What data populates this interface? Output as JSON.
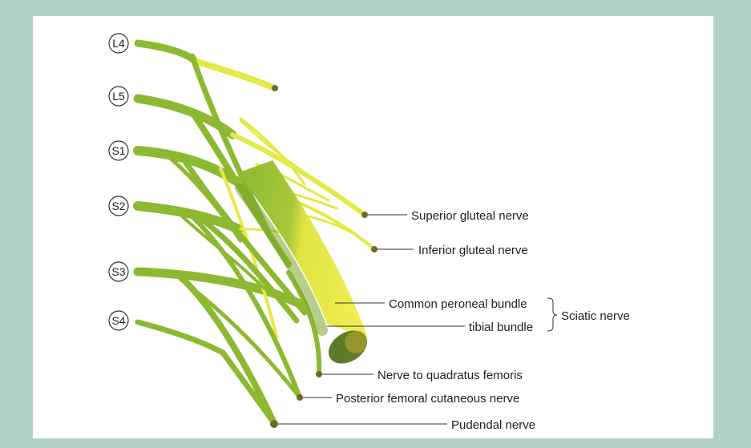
{
  "roots": [
    "L4",
    "L5",
    "S1",
    "S2",
    "S3",
    "S4"
  ],
  "labels": {
    "superior_gluteal": "Superior gluteal nerve",
    "inferior_gluteal": "Inferior gluteal nerve",
    "common_peroneal": "Common peroneal bundle",
    "tibial": "tibial bundle",
    "sciatic": "Sciatic nerve",
    "quadratus": "Nerve to quadratus femoris",
    "post_femoral": "Posterior femoral cutaneous nerve",
    "pudendal": "Pudendal nerve"
  },
  "colors": {
    "frame": "#b2d1c8",
    "green_nerve": "#8db832",
    "yellow_nerve": "#e5e845",
    "nerve_end": "#6b6a2b",
    "leader_line": "#333333"
  }
}
